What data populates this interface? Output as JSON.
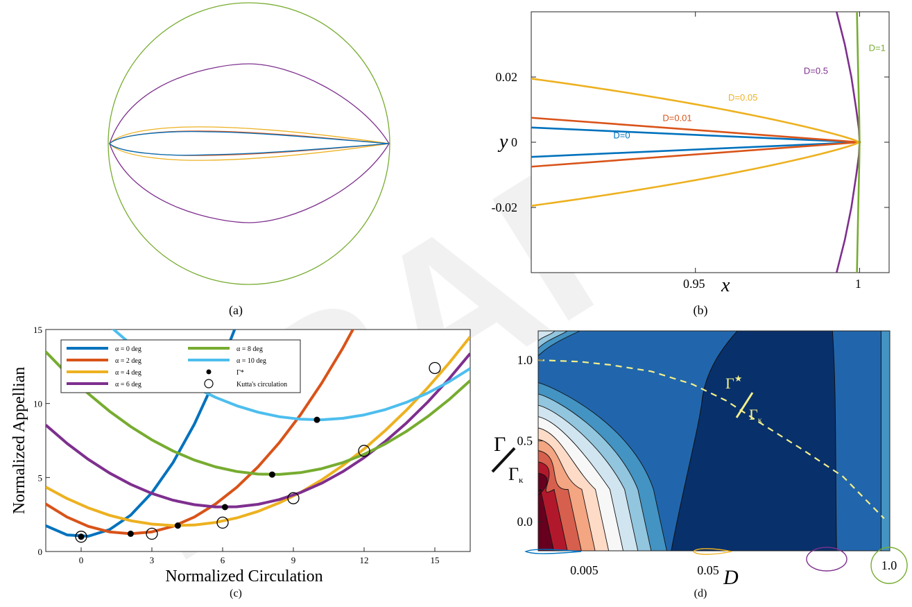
{
  "watermark": "DRAFT",
  "panels": {
    "a": {
      "caption": "(a)"
    },
    "b": {
      "caption": "(b)"
    },
    "c": {
      "caption": "(c)"
    },
    "d": {
      "caption": "(d)"
    }
  },
  "chart_data": [
    {
      "panel": "a",
      "type": "line",
      "title": "",
      "xlabel": "",
      "ylabel": "",
      "axes_visible": false,
      "series": [
        {
          "name": "",
          "color": "#77AC30",
          "shape": "circle (D=1)"
        },
        {
          "name": "",
          "color": "#7E2F8E",
          "shape": "ellipse-like airfoil (D=0.5)"
        },
        {
          "name": "",
          "color": "#EDB120",
          "shape": "thick airfoil (D=0.05)"
        },
        {
          "name": "",
          "color": "#D95319",
          "shape": "airfoil (D=0.01)"
        },
        {
          "name": "",
          "color": "#0072BD",
          "shape": "Joukowski airfoil (D=0)"
        }
      ]
    },
    {
      "panel": "b",
      "type": "line",
      "xlabel": "x",
      "ylabel": "y",
      "xlim": [
        0.9,
        1.009
      ],
      "ylim": [
        -0.04,
        0.04
      ],
      "xticks": [
        0.95,
        1
      ],
      "xtick_labels": [
        "0.95",
        "1"
      ],
      "yticks": [
        -0.02,
        0,
        0.02
      ],
      "ytick_labels": [
        "-0.02",
        "0",
        "0.02"
      ],
      "grid": false,
      "series": [
        {
          "name": "D=0",
          "color": "#0072BD",
          "upper": {
            "x": [
              0.9,
              1.0
            ],
            "y": [
              0.0045,
              0.0
            ]
          },
          "lower": {
            "x": [
              0.9,
              1.0
            ],
            "y": [
              -0.0045,
              0.0
            ]
          }
        },
        {
          "name": "D=0.01",
          "color": "#D95319",
          "upper": {
            "x": [
              0.9,
              1.0
            ],
            "y": [
              0.0075,
              0.0
            ]
          },
          "lower": {
            "x": [
              0.9,
              1.0
            ],
            "y": [
              -0.0075,
              0.0
            ]
          }
        },
        {
          "name": "D=0.05",
          "color": "#EDB120",
          "tip_x": 1.0,
          "x0": 0.9,
          "y0": 0.0195
        },
        {
          "name": "D=0.5",
          "color": "#7E2F8E",
          "x": [
            0.993,
            0.9955,
            0.9975,
            0.999,
            0.9998,
            1.0,
            0.9998,
            0.999,
            0.9975,
            0.9955,
            0.993
          ],
          "y": [
            -0.04,
            -0.03,
            -0.02,
            -0.01,
            -0.004,
            0.0,
            0.004,
            0.01,
            0.02,
            0.03,
            0.04
          ]
        },
        {
          "name": "D=1",
          "color": "#77AC30",
          "x": [
            0.9992,
            0.9996,
            0.9999,
            1.0,
            0.9999,
            0.9996,
            0.9992
          ],
          "y": [
            -0.04,
            -0.02,
            -0.007,
            0.0,
            0.007,
            0.02,
            0.04
          ]
        }
      ]
    },
    {
      "panel": "c",
      "type": "line",
      "xlabel": "Normalized Circulation",
      "ylabel": "Normalized Appellian",
      "xlim": [
        -1.5,
        16.5
      ],
      "ylim": [
        0,
        15
      ],
      "xticks": [
        0,
        3,
        6,
        9,
        12,
        15
      ],
      "xtick_labels": [
        "0",
        "3",
        "6",
        "9",
        "12",
        "15"
      ],
      "yticks": [
        0,
        5,
        10,
        15
      ],
      "ytick_labels": [
        "0",
        "5",
        "10",
        "15"
      ],
      "legend_position": "top-left",
      "series": [
        {
          "name": "α = 0 deg",
          "color": "#0072BD",
          "min": [
            0,
            1.0
          ],
          "k": 0.33,
          "kutta": [
            0,
            1.0
          ]
        },
        {
          "name": "α = 2 deg",
          "color": "#D95319",
          "min": [
            2.1,
            1.2
          ],
          "k": 0.155,
          "kutta": [
            3,
            1.2
          ]
        },
        {
          "name": "α = 4 deg",
          "color": "#EDB120",
          "min": [
            4.1,
            1.75
          ],
          "k": 0.083,
          "kutta": [
            6,
            1.95
          ]
        },
        {
          "name": "α = 6 deg",
          "color": "#7E2F8E",
          "min": [
            6.1,
            3.0
          ],
          "k": 0.096,
          "kutta": [
            9,
            3.6
          ]
        },
        {
          "name": "α = 8 deg",
          "color": "#77AC30",
          "min": [
            8.1,
            5.2
          ],
          "k": 0.09,
          "kutta": [
            12,
            6.8
          ]
        },
        {
          "name": "α = 10 deg",
          "color": "#4DBEEE",
          "min": [
            10.0,
            8.9
          ],
          "k": 0.082,
          "kutta": [
            15,
            12.4
          ]
        }
      ],
      "legend_markers": [
        {
          "name": "Γ*",
          "symbol": "filled-dot"
        },
        {
          "name": "Kutta's circulation",
          "symbol": "open-circle"
        }
      ]
    },
    {
      "panel": "d",
      "type": "heatmap",
      "xlabel": "D",
      "ylabel": "Γ/Γκ",
      "xscale": "log",
      "xtick_labels": [
        "0.005",
        "0.05",
        "1.0"
      ],
      "ytick_labels": [
        "0.0",
        "0.5",
        "1.0"
      ],
      "yticks": [
        0.0,
        0.5,
        1.0
      ],
      "colormap": "RdBu",
      "curve_label": "Γ*/Γκ",
      "curve_color": "#f4f08a",
      "curve": {
        "x": [
          0.003,
          0.006,
          0.01,
          0.02,
          0.04,
          0.07,
          0.12,
          0.25,
          0.5,
          1.0
        ],
        "y": [
          1.0,
          0.99,
          0.97,
          0.93,
          0.85,
          0.75,
          0.62,
          0.45,
          0.28,
          0.02
        ]
      },
      "colors": [
        "#67001f",
        "#b2182b",
        "#d6604d",
        "#f4a582",
        "#fddbc7",
        "#f7f7f7",
        "#d1e5f0",
        "#92c5de",
        "#4393c3",
        "#2166ac",
        "#0a4a8a",
        "#08306b"
      ]
    }
  ]
}
